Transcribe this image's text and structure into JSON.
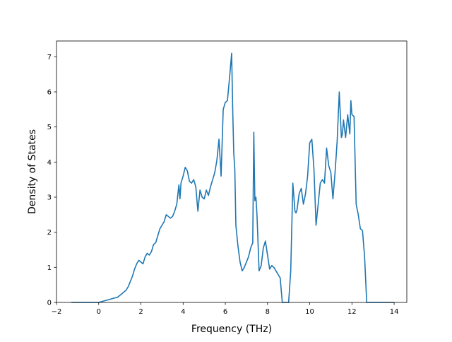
{
  "chart_data": {
    "type": "line",
    "title": "",
    "xlabel": "Frequency (THz)",
    "ylabel": "Density of States",
    "xlim": [
      -2,
      14.6
    ],
    "ylim": [
      0,
      7.45
    ],
    "xticks": [
      -2,
      0,
      2,
      4,
      6,
      8,
      10,
      12,
      14
    ],
    "yticks": [
      0,
      1,
      2,
      3,
      4,
      5,
      6,
      7
    ],
    "xtick_labels": [
      "−2",
      "0",
      "2",
      "4",
      "6",
      "8",
      "10",
      "12",
      "14"
    ],
    "ytick_labels": [
      "0",
      "1",
      "2",
      "3",
      "4",
      "5",
      "6",
      "7"
    ],
    "grid": false,
    "legend": "none",
    "series": [
      {
        "color": "#1f77b4",
        "x": [
          -1.3,
          0.0,
          0.3,
          0.6,
          0.9,
          1.1,
          1.3,
          1.4,
          1.5,
          1.6,
          1.7,
          1.8,
          1.9,
          2.0,
          2.1,
          2.2,
          2.3,
          2.4,
          2.5,
          2.6,
          2.7,
          2.8,
          2.9,
          3.0,
          3.1,
          3.2,
          3.3,
          3.4,
          3.5,
          3.6,
          3.7,
          3.8,
          3.85,
          3.9,
          4.0,
          4.1,
          4.2,
          4.3,
          4.4,
          4.5,
          4.6,
          4.7,
          4.8,
          4.9,
          5.0,
          5.1,
          5.2,
          5.3,
          5.4,
          5.5,
          5.6,
          5.7,
          5.8,
          5.9,
          6.0,
          6.1,
          6.2,
          6.3,
          6.35,
          6.4,
          6.45,
          6.5,
          6.6,
          6.7,
          6.8,
          6.9,
          7.0,
          7.1,
          7.2,
          7.3,
          7.35,
          7.4,
          7.45,
          7.5,
          7.6,
          7.7,
          7.8,
          7.9,
          8.0,
          8.1,
          8.2,
          8.3,
          8.4,
          8.5,
          8.6,
          8.7,
          8.8,
          8.9,
          9.0,
          9.1,
          9.2,
          9.3,
          9.35,
          9.4,
          9.5,
          9.6,
          9.7,
          9.8,
          9.9,
          10.0,
          10.1,
          10.2,
          10.3,
          10.4,
          10.5,
          10.6,
          10.7,
          10.8,
          10.9,
          11.0,
          11.1,
          11.2,
          11.3,
          11.4,
          11.5,
          11.55,
          11.6,
          11.7,
          11.8,
          11.9,
          11.95,
          12.0,
          12.1,
          12.2,
          12.3,
          12.4,
          12.5,
          12.6,
          12.7,
          13.0,
          14.0
        ],
        "y": [
          0.0,
          0.0,
          0.05,
          0.1,
          0.15,
          0.25,
          0.35,
          0.45,
          0.6,
          0.75,
          0.95,
          1.1,
          1.2,
          1.15,
          1.1,
          1.3,
          1.4,
          1.35,
          1.45,
          1.65,
          1.7,
          1.9,
          2.1,
          2.2,
          2.3,
          2.5,
          2.45,
          2.4,
          2.45,
          2.6,
          2.8,
          3.35,
          2.95,
          3.4,
          3.6,
          3.85,
          3.75,
          3.45,
          3.4,
          3.5,
          3.3,
          2.6,
          3.2,
          3.0,
          2.95,
          3.2,
          3.05,
          3.3,
          3.5,
          3.7,
          4.05,
          4.65,
          3.6,
          5.5,
          5.7,
          5.75,
          6.4,
          7.1,
          5.5,
          4.25,
          3.8,
          2.2,
          1.6,
          1.15,
          0.9,
          1.0,
          1.15,
          1.3,
          1.55,
          1.7,
          4.85,
          2.9,
          3.0,
          2.5,
          0.9,
          1.05,
          1.55,
          1.75,
          1.35,
          0.95,
          1.05,
          1.0,
          0.9,
          0.8,
          0.7,
          0.0,
          0.0,
          0.0,
          0.0,
          0.9,
          3.4,
          2.6,
          2.55,
          2.65,
          3.1,
          3.25,
          2.8,
          3.1,
          3.6,
          4.55,
          4.65,
          3.8,
          2.2,
          2.8,
          3.4,
          3.5,
          3.4,
          4.4,
          3.9,
          3.7,
          2.95,
          3.7,
          4.6,
          6.0,
          4.7,
          4.8,
          5.2,
          4.7,
          5.35,
          4.8,
          5.75,
          5.35,
          5.3,
          2.8,
          2.5,
          2.1,
          2.05,
          1.3,
          0.0,
          0.0,
          0.0
        ]
      }
    ]
  }
}
